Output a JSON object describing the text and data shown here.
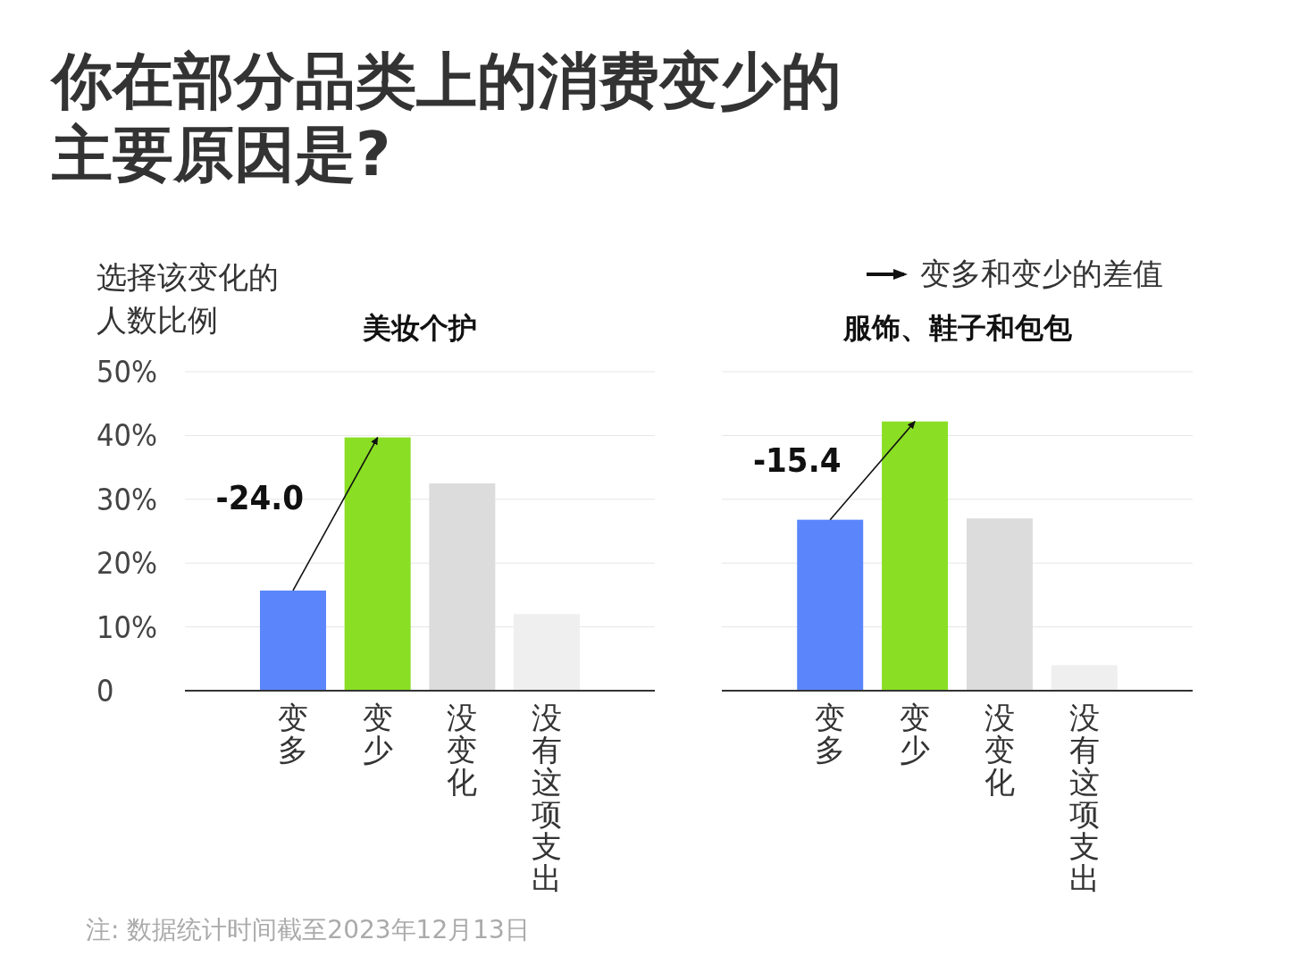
{
  "chart_data": [
    {
      "type": "bar",
      "title": "美妆个护",
      "ylabel": "选择该变化的人数比例",
      "categories": [
        "变多",
        "变少",
        "没变化",
        "没有这项支出"
      ],
      "values": [
        15.7,
        39.7,
        32.5,
        12.0
      ],
      "colors": [
        "#5b86fb",
        "#8ade24",
        "#dcdcdc",
        "#efefef"
      ],
      "ylim": [
        0,
        50
      ],
      "yticks": [
        0,
        {
          "value": 10,
          "label": "10%"
        },
        {
          "value": 20,
          "label": "20%"
        },
        {
          "value": 30,
          "label": "30%"
        },
        {
          "value": 40,
          "label": "40%"
        },
        {
          "value": 50,
          "label": "50%"
        }
      ],
      "grid": "y",
      "annotations": [
        "你在部分品类上的消费变少的主要原因是?",
        {
          "text": "-24.0",
          "x": "变多",
          "y": 15.7
        },
        "注: 数据统计时间截至2023年12月13日"
      ]
    },
    {
      "type": "bar",
      "title": "服饰、鞋子和包包",
      "categories": [
        "变多",
        "变少",
        "没变化",
        "没有这项支出"
      ],
      "values": [
        26.8,
        42.2,
        27.0,
        4.0
      ],
      "colors": [
        "#5b86fb",
        "#8ade24",
        "#dcdcdc",
        "#efefef"
      ],
      "ylim": [
        0,
        50
      ],
      "yticks": [
        {
          "value": 0,
          "label": null
        },
        {
          "value": 10,
          "label": null
        },
        {
          "value": 20,
          "label": null
        },
        {
          "value": 30,
          "label": null
        },
        {
          "value": 40,
          "label": null
        },
        {
          "value": 50,
          "label": null
        }
      ],
      "grid": "y",
      "tick_labels": "x",
      "annotations": [
        {
          "text": "-15.4",
          "x": "变多",
          "y": 26.8
        },
        "变多和变少的差值"
      ]
    }
  ]
}
